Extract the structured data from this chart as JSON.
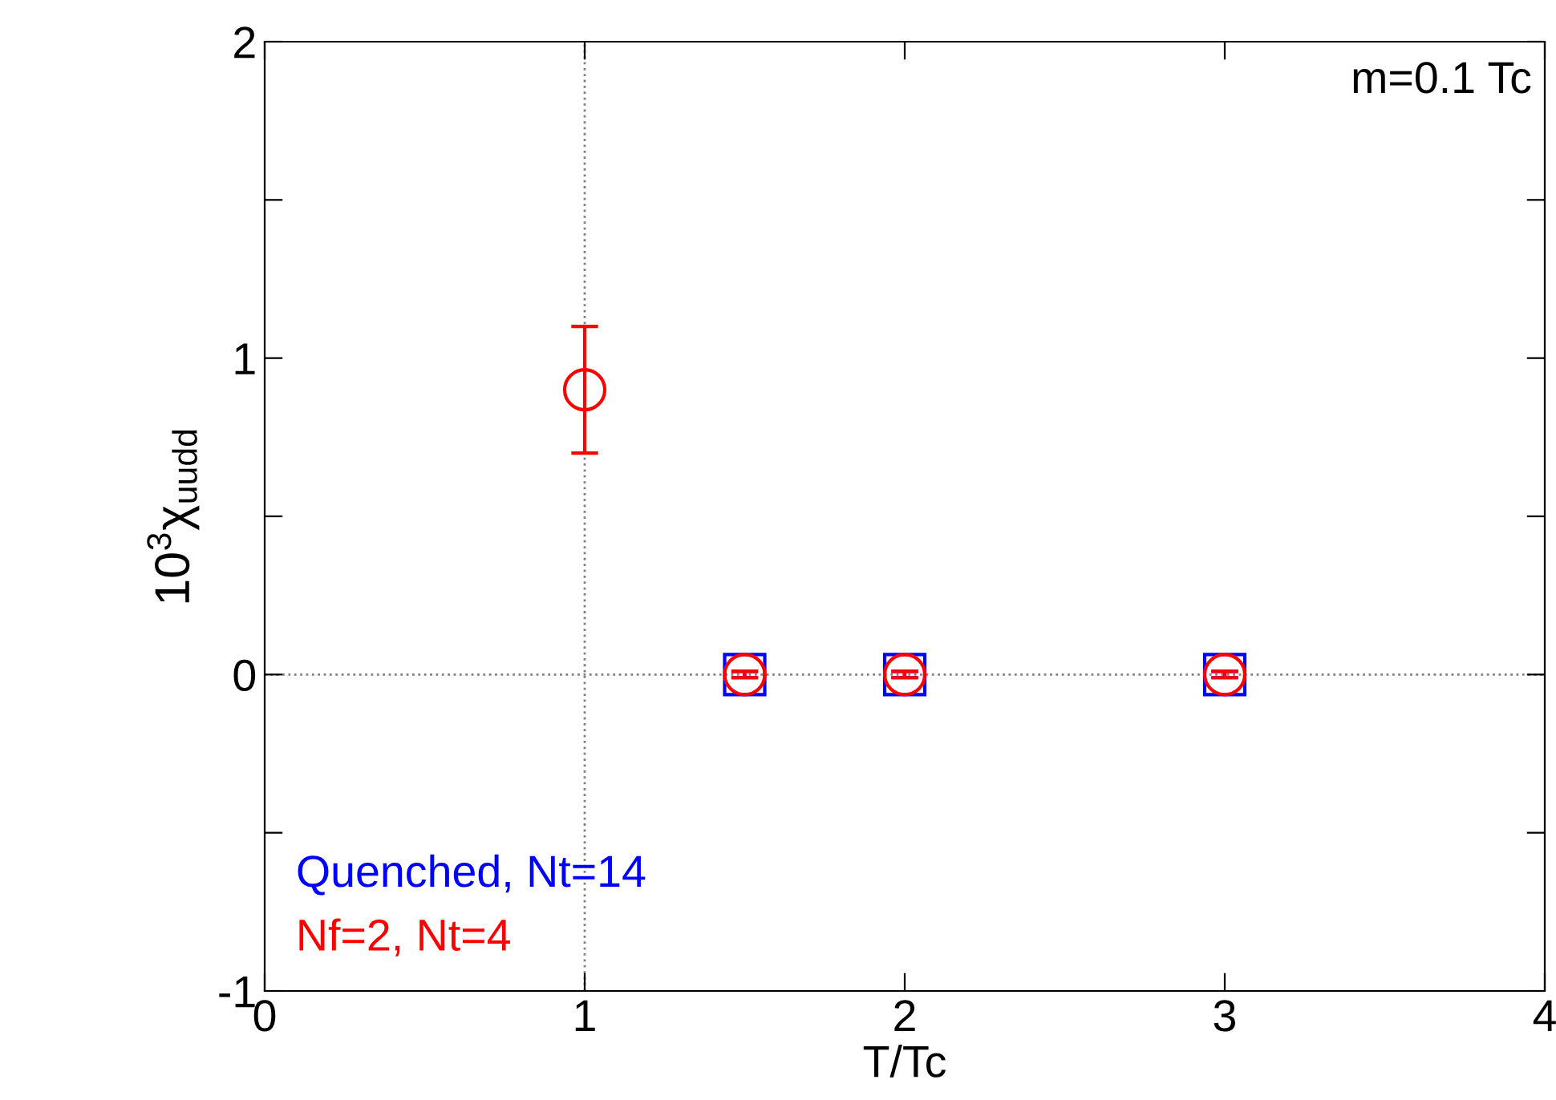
{
  "chart_data": {
    "type": "scatter",
    "xlabel": "T/Tc",
    "ylabel": "10$^{3}$χ$_{uudd}$",
    "xlim": [
      0,
      4
    ],
    "xticks": [
      0,
      1,
      2,
      3,
      4
    ],
    "ylim": [
      -1,
      2
    ],
    "yticks": [
      -1,
      {
        "value": -0.5,
        "label": null
      },
      0,
      {
        "value": 0.5,
        "label": null
      },
      1,
      {
        "value": 1.5,
        "label": null
      },
      2
    ],
    "series": [
      {
        "name": "Quenched, Nt=14",
        "color": "#0000ff",
        "marker": "square",
        "x": [
          1.5,
          2,
          3
        ],
        "values": [
          0,
          0,
          0
        ],
        "errors": [
          0.01,
          0.01,
          0.01
        ]
      },
      {
        "name": "Nf=2, Nt=4",
        "color": "#ff0000",
        "marker": "circle",
        "x": [
          1,
          1.5,
          2,
          3
        ],
        "values": [
          0.9,
          0,
          0,
          0
        ],
        "errors": [
          0.2,
          0.01,
          0.01,
          0.01
        ]
      }
    ],
    "ref_lines": [
      {
        "axis": "x",
        "value": 1,
        "color": "#808080",
        "line_style": "dotted"
      },
      {
        "axis": "y",
        "value": 0,
        "color": "#808080",
        "line_style": "dotted"
      }
    ],
    "annotations": [
      "m=0.1 Tc"
    ],
    "legend": "bottom left",
    "grid": false
  }
}
